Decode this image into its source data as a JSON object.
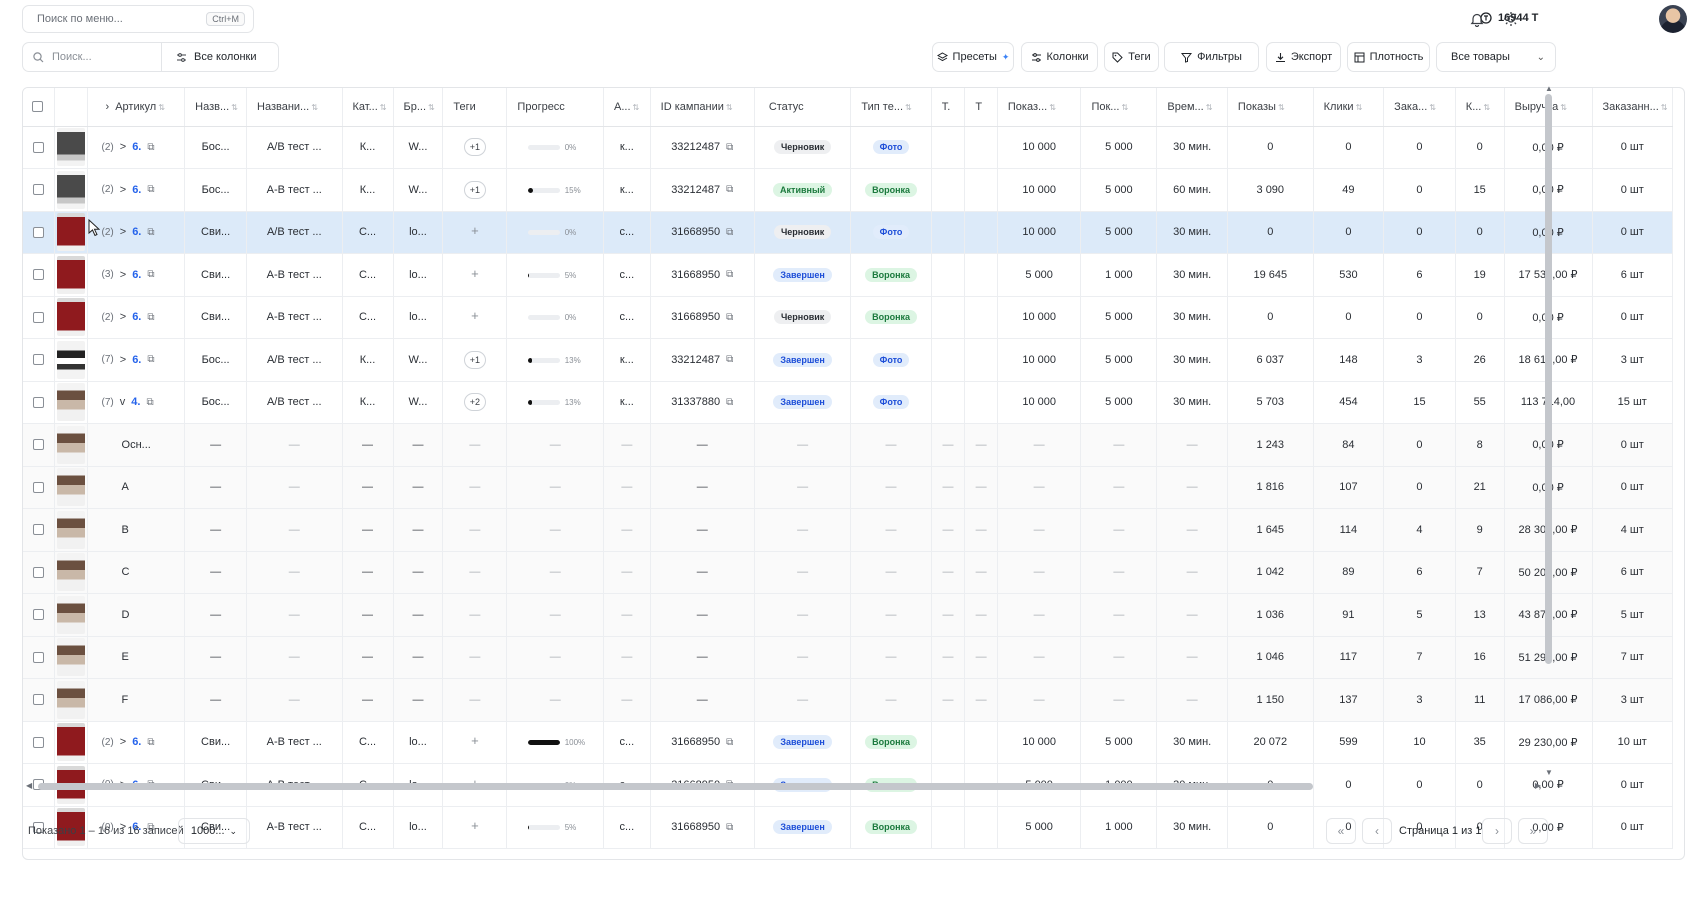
{
  "top": {
    "menu_search_placeholder": "Поиск по меню...",
    "menu_search_shortcut": "Ctrl+M",
    "balance": "16944 Т"
  },
  "toolbar": {
    "search_placeholder": "Поиск...",
    "all_columns": "Все колонки",
    "presets": "Пресеты",
    "columns": "Колонки",
    "tags": "Теги",
    "filters": "Фильтры",
    "export": "Экспорт",
    "density": "Плотность",
    "products_select": "Все товары"
  },
  "columns": [
    "Артикул",
    "Назв...",
    "Названи...",
    "Кат...",
    "Бр...",
    "Теги",
    "Прогресс",
    "А...",
    "ID кампании",
    "Статус",
    "Тип те...",
    "Т.",
    "Т",
    "Показ...",
    "Пок...",
    "Врем...",
    "Показы",
    "Клики",
    "Зака...",
    "К...",
    "Выручка",
    "Заказанн..."
  ],
  "rows": [
    {
      "kind": "parent",
      "thumb": "grey",
      "cnt": "(2)",
      "chev": ">",
      "art": "6.",
      "name": "Бос...",
      "name2": "A/B тест ...",
      "cat": "К...",
      "brand": "W...",
      "tag": "+1",
      "progress": 0,
      "prog_label": "0%",
      "a": "к...",
      "camp": "33212487",
      "status": "Черновик",
      "status_cls": "b-draft",
      "type": "Фото",
      "type_cls": "b-photo",
      "t1": "",
      "t2": "",
      "sh1": "10 000",
      "sh2": "5 000",
      "time": "30 мин.",
      "shows": "0",
      "clicks": "0",
      "orders": "0",
      "k": "0",
      "revenue": "0,00 ₽",
      "ordered": "0 шт"
    },
    {
      "kind": "parent",
      "thumb": "grey",
      "cnt": "(2)",
      "chev": ">",
      "art": "6.",
      "name": "Бос...",
      "name2": "A-B тест ...",
      "cat": "К...",
      "brand": "W...",
      "tag": "+1",
      "progress": 15,
      "prog_label": "15%",
      "a": "к...",
      "camp": "33212487",
      "status": "Активный",
      "status_cls": "b-active",
      "type": "Воронка",
      "type_cls": "b-funnel",
      "t1": "",
      "t2": "",
      "sh1": "10 000",
      "sh2": "5 000",
      "time": "60 мин.",
      "shows": "3 090",
      "clicks": "49",
      "orders": "0",
      "k": "15",
      "revenue": "0,00 ₽",
      "ordered": "0 шт"
    },
    {
      "kind": "selected",
      "thumb": "red",
      "cnt": "(2)",
      "chev": ">",
      "art": "6.",
      "name": "Сви...",
      "name2": "A/B тест ...",
      "cat": "С...",
      "brand": "lo...",
      "tag": "+",
      "progress": 0,
      "prog_label": "0%",
      "a": "с...",
      "camp": "31668950",
      "status": "Черновик",
      "status_cls": "b-draft",
      "type": "Фото",
      "type_cls": "b-photo",
      "t1": "",
      "t2": "",
      "sh1": "10 000",
      "sh2": "5 000",
      "time": "30 мин.",
      "shows": "0",
      "clicks": "0",
      "orders": "0",
      "k": "0",
      "revenue": "0,00 ₽",
      "ordered": "0 шт"
    },
    {
      "kind": "parent",
      "thumb": "red",
      "cnt": "(3)",
      "chev": ">",
      "art": "6.",
      "name": "Сви...",
      "name2": "A-B тест ...",
      "cat": "С...",
      "brand": "lo...",
      "tag": "+",
      "progress": 5,
      "prog_label": "5%",
      "a": "с...",
      "camp": "31668950",
      "status": "Завершен",
      "status_cls": "b-done",
      "type": "Воронка",
      "type_cls": "b-funnel",
      "t1": "",
      "t2": "",
      "sh1": "5 000",
      "sh2": "1 000",
      "time": "30 мин.",
      "shows": "19 645",
      "clicks": "530",
      "orders": "6",
      "k": "19",
      "revenue": "17 538,00 ₽",
      "ordered": "6 шт"
    },
    {
      "kind": "parent",
      "thumb": "red",
      "cnt": "(2)",
      "chev": ">",
      "art": "6.",
      "name": "Сви...",
      "name2": "A-B тест ...",
      "cat": "С...",
      "brand": "lo...",
      "tag": "+",
      "progress": 0,
      "prog_label": "0%",
      "a": "с...",
      "camp": "31668950",
      "status": "Черновик",
      "status_cls": "b-draft",
      "type": "Воронка",
      "type_cls": "b-funnel",
      "t1": "",
      "t2": "",
      "sh1": "10 000",
      "sh2": "5 000",
      "time": "30 мин.",
      "shows": "0",
      "clicks": "0",
      "orders": "0",
      "k": "0",
      "revenue": "0,00 ₽",
      "ordered": "0 шт"
    },
    {
      "kind": "parent",
      "thumb": "sneaker",
      "cnt": "(7)",
      "chev": ">",
      "art": "6.",
      "name": "Бос...",
      "name2": "A/B тест ...",
      "cat": "К...",
      "brand": "W...",
      "tag": "+1",
      "progress": 13,
      "prog_label": "13%",
      "a": "к...",
      "camp": "33212487",
      "status": "Завершен",
      "status_cls": "b-done",
      "type": "Фото",
      "type_cls": "b-photo",
      "t1": "",
      "t2": "",
      "sh1": "10 000",
      "sh2": "5 000",
      "time": "30 мин.",
      "shows": "6 037",
      "clicks": "148",
      "orders": "3",
      "k": "26",
      "revenue": "18 614,00 ₽",
      "ordered": "3 шт"
    },
    {
      "kind": "parent",
      "thumb": "shoe",
      "cnt": "(7)",
      "chev": "v",
      "art": "4.",
      "name": "Бос...",
      "name2": "A/B тест ...",
      "cat": "К...",
      "brand": "W...",
      "tag": "+2",
      "progress": 13,
      "prog_label": "13%",
      "a": "к...",
      "camp": "31337880",
      "status": "Завершен",
      "status_cls": "b-done",
      "type": "Фото",
      "type_cls": "b-photo",
      "t1": "",
      "t2": "",
      "sh1": "10 000",
      "sh2": "5 000",
      "time": "30 мин.",
      "shows": "5 703",
      "clicks": "454",
      "orders": "15",
      "k": "55",
      "revenue": "113 714,00",
      "ordered": "15 шт"
    },
    {
      "kind": "child",
      "thumb": "shoe",
      "label": "Осн...",
      "shows": "1 243",
      "clicks": "84",
      "orders": "0",
      "k": "8",
      "revenue": "0,00 ₽",
      "ordered": "0 шт"
    },
    {
      "kind": "child",
      "thumb": "shoe",
      "label": "A",
      "shows": "1 816",
      "clicks": "107",
      "orders": "0",
      "k": "21",
      "revenue": "0,00 ₽",
      "ordered": "0 шт"
    },
    {
      "kind": "child",
      "thumb": "shoe",
      "label": "B",
      "shows": "1 645",
      "clicks": "114",
      "orders": "4",
      "k": "9",
      "revenue": "28 305,00 ₽",
      "ordered": "4 шт"
    },
    {
      "kind": "child",
      "thumb": "shoe",
      "label": "C",
      "shows": "1 042",
      "clicks": "89",
      "orders": "6",
      "k": "7",
      "revenue": "50 209,00 ₽",
      "ordered": "6 шт"
    },
    {
      "kind": "child",
      "thumb": "shoe",
      "label": "D",
      "shows": "1 036",
      "clicks": "91",
      "orders": "5",
      "k": "13",
      "revenue": "43 873,00 ₽",
      "ordered": "5 шт"
    },
    {
      "kind": "child",
      "thumb": "shoe",
      "label": "E",
      "shows": "1 046",
      "clicks": "117",
      "orders": "7",
      "k": "16",
      "revenue": "51 297,00 ₽",
      "ordered": "7 шт"
    },
    {
      "kind": "child",
      "thumb": "shoe",
      "label": "F",
      "shows": "1 150",
      "clicks": "137",
      "orders": "3",
      "k": "11",
      "revenue": "17 086,00 ₽",
      "ordered": "3 шт"
    },
    {
      "kind": "parent",
      "thumb": "red",
      "cnt": "(2)",
      "chev": ">",
      "art": "6.",
      "name": "Сви...",
      "name2": "A-B тест ...",
      "cat": "С...",
      "brand": "lo...",
      "tag": "+",
      "progress": 100,
      "prog_label": "100%",
      "a": "с...",
      "camp": "31668950",
      "status": "Завершен",
      "status_cls": "b-done",
      "type": "Воронка",
      "type_cls": "b-funnel",
      "t1": "",
      "t2": "",
      "sh1": "10 000",
      "sh2": "5 000",
      "time": "30 мин.",
      "shows": "20 072",
      "clicks": "599",
      "orders": "10",
      "k": "35",
      "revenue": "29 230,00 ₽",
      "ordered": "10 шт"
    },
    {
      "kind": "parent",
      "thumb": "red",
      "cnt": "(0)",
      "chev": ">",
      "art": "6.",
      "name": "Сви...",
      "name2": "A-B тест ...",
      "cat": "С...",
      "brand": "lo...",
      "tag": "+",
      "progress": 0,
      "prog_label": "0%",
      "a": "с...",
      "camp": "31668950",
      "status": "Завершен",
      "status_cls": "b-done",
      "type": "Воронка",
      "type_cls": "b-funnel",
      "t1": "",
      "t2": "",
      "sh1": "5 000",
      "sh2": "1 000",
      "time": "30 мин.",
      "shows": "0",
      "clicks": "0",
      "orders": "0",
      "k": "0",
      "revenue": "0,00 ₽",
      "ordered": "0 шт"
    },
    {
      "kind": "parent",
      "thumb": "red",
      "cnt": "(0)",
      "chev": ">",
      "art": "6.",
      "name": "Сви...",
      "name2": "A-B тест ...",
      "cat": "С...",
      "brand": "lo...",
      "tag": "+",
      "progress": 5,
      "prog_label": "5%",
      "a": "с...",
      "camp": "31668950",
      "status": "Завершен",
      "status_cls": "b-done",
      "type": "Воронка",
      "type_cls": "b-funnel",
      "t1": "",
      "t2": "",
      "sh1": "5 000",
      "sh2": "1 000",
      "time": "30 мин.",
      "shows": "0",
      "clicks": "0",
      "orders": "0",
      "k": "0",
      "revenue": "0,00 ₽",
      "ordered": "0 шт"
    }
  ],
  "child_dash": "—",
  "footer": {
    "info": "Показано 1 – 16 из 16 записей",
    "page_size": "1000...",
    "page_label": "Страница 1 из 1"
  }
}
